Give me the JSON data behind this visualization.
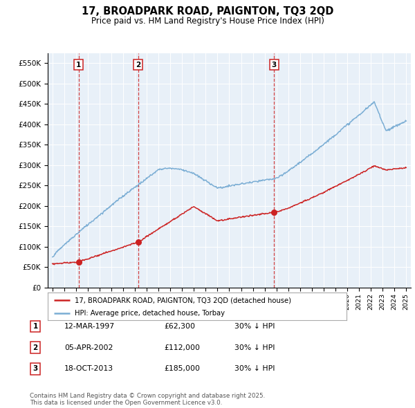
{
  "title": "17, BROADPARK ROAD, PAIGNTON, TQ3 2QD",
  "subtitle": "Price paid vs. HM Land Registry's House Price Index (HPI)",
  "ylim": [
    0,
    575000
  ],
  "yticks": [
    0,
    50000,
    100000,
    150000,
    200000,
    250000,
    300000,
    350000,
    400000,
    450000,
    500000,
    550000
  ],
  "hpi_color": "#7aadd4",
  "price_color": "#cc2222",
  "vline_color": "#cc2222",
  "plot_bg_color": "#e8f0f8",
  "legend_items": [
    "17, BROADPARK ROAD, PAIGNTON, TQ3 2QD (detached house)",
    "HPI: Average price, detached house, Torbay"
  ],
  "purchases": [
    {
      "label": "1",
      "date": "12-MAR-1997",
      "price": "£62,300",
      "year": 1997.22,
      "price_val": 62300,
      "hpi_pct": "30% ↓ HPI"
    },
    {
      "label": "2",
      "date": "05-APR-2002",
      "price": "£112,000",
      "year": 2002.27,
      "price_val": 112000,
      "hpi_pct": "30% ↓ HPI"
    },
    {
      "label": "3",
      "date": "18-OCT-2013",
      "price": "£185,000",
      "year": 2013.8,
      "price_val": 185000,
      "hpi_pct": "30% ↓ HPI"
    }
  ],
  "footer": "Contains HM Land Registry data © Crown copyright and database right 2025.\nThis data is licensed under the Open Government Licence v3.0.",
  "xmin": 1994.6,
  "xmax": 2025.4,
  "xticks": [
    1995,
    1996,
    1997,
    1998,
    1999,
    2000,
    2001,
    2002,
    2003,
    2004,
    2005,
    2006,
    2007,
    2008,
    2009,
    2010,
    2011,
    2012,
    2013,
    2014,
    2015,
    2016,
    2017,
    2018,
    2019,
    2020,
    2021,
    2022,
    2023,
    2024,
    2025
  ]
}
